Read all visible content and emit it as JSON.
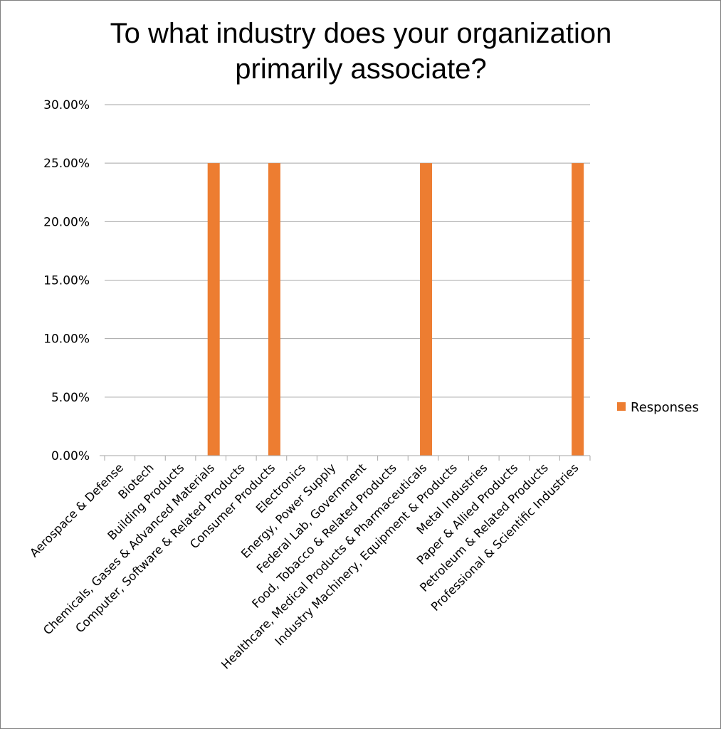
{
  "chart_data": {
    "type": "bar",
    "title": "To what industry does your organization primarily associate?",
    "title_lines": [
      "To what industry does your organization",
      "primarily associate?"
    ],
    "xlabel": "",
    "ylabel": "",
    "ylim": [
      0,
      0.3
    ],
    "y_ticks": [
      0,
      0.05,
      0.1,
      0.15,
      0.2,
      0.25,
      0.3
    ],
    "y_tick_labels": [
      "0.00%",
      "5.00%",
      "10.00%",
      "15.00%",
      "20.00%",
      "25.00%",
      "30.00%"
    ],
    "grid": true,
    "legend_position": "right",
    "categories": [
      "Aerospace & Defense",
      "Biotech",
      "Building Products",
      "Chemicals, Gases & Advanced Materials",
      "Computer, Software & Related Products",
      "Consumer Products",
      "Electronics",
      "Energy, Power Supply",
      "Federal Lab, Government",
      "Food, Tobacco & Related Products",
      "Healthcare, Medical Products & Pharmaceuticals",
      "Industry Machinery, Equipment & Products",
      "Metal Industries",
      "Paper & Allied Products",
      "Petroleum & Related Products",
      "Professional & Scientific Industries"
    ],
    "series": [
      {
        "name": "Responses",
        "color": "#ed7d31",
        "values": [
          0,
          0,
          0,
          0.25,
          0,
          0.25,
          0,
          0,
          0,
          0,
          0.25,
          0,
          0,
          0,
          0,
          0.25
        ]
      }
    ]
  }
}
